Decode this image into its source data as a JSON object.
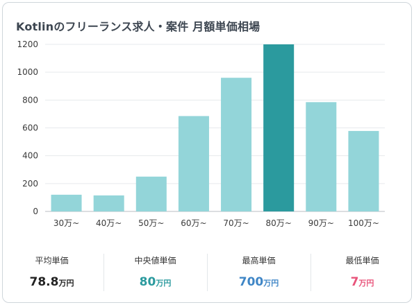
{
  "title": "Kotlinのフリーランス求人・案件 月額単価相場",
  "colors": {
    "bar": "#93d5d9",
    "bar_highlight": "#2b9a9e",
    "avg": "#222222",
    "median": "#2b9a9e",
    "max": "#3f86c6",
    "min": "#e8537a"
  },
  "chart_data": {
    "type": "bar",
    "categories": [
      "30万~",
      "40万~",
      "50万~",
      "60万~",
      "70万~",
      "80万~",
      "90万~",
      "100万~"
    ],
    "values": [
      120,
      115,
      250,
      685,
      960,
      1200,
      785,
      578
    ],
    "highlight_index": 5,
    "ylim": [
      0,
      1200
    ],
    "yticks": [
      0,
      200,
      400,
      600,
      800,
      1000,
      1200
    ],
    "grid": true,
    "title": "",
    "xlabel": "",
    "ylabel": ""
  },
  "stats": [
    {
      "label": "平均単価",
      "value": "78.8",
      "unit": "万円",
      "color_key": "avg"
    },
    {
      "label": "中央値単価",
      "value": "80",
      "unit": "万円",
      "color_key": "median"
    },
    {
      "label": "最高単価",
      "value": "700",
      "unit": "万円",
      "color_key": "max"
    },
    {
      "label": "最低単価",
      "value": "7",
      "unit": "万円",
      "color_key": "min"
    }
  ]
}
